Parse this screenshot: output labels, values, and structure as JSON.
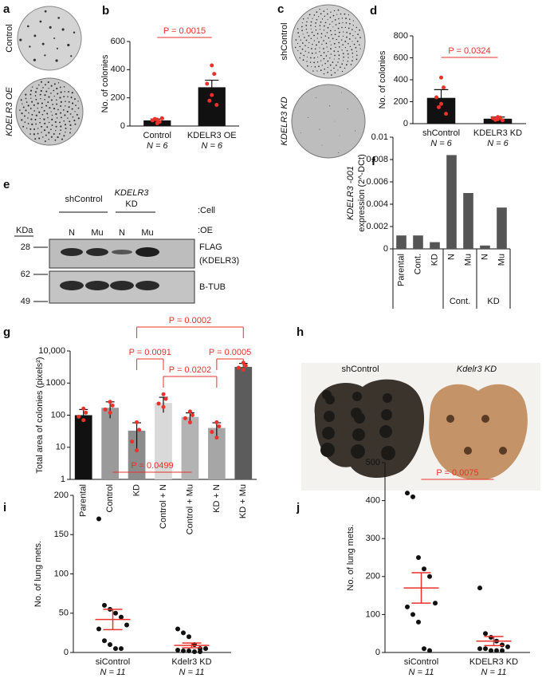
{
  "chart_data": [
    {
      "panel": "b",
      "type": "bar",
      "ylabel": "No. of colonies",
      "categories": [
        "Control",
        "KDELR3 OE"
      ],
      "category_notes": [
        "N = 6",
        "N = 6"
      ],
      "values": [
        40,
        275
      ],
      "errors": [
        10,
        50
      ],
      "points": [
        [
          20,
          30,
          40,
          45,
          50,
          55
        ],
        [
          430,
          370,
          300,
          220,
          180,
          150
        ]
      ],
      "color": "#111111",
      "point_color": "#e8322b",
      "ylim": [
        0,
        600
      ],
      "yticks": [
        0,
        200,
        400,
        600
      ],
      "annotations": [
        "P = 0.0015"
      ]
    },
    {
      "panel": "d",
      "type": "bar",
      "ylabel": "No. of colonies",
      "categories": [
        "shControl",
        "KDELR3 KD"
      ],
      "category_notes": [
        "N = 6",
        "N = 6"
      ],
      "values": [
        235,
        45
      ],
      "errors": [
        75,
        15
      ],
      "points": [
        [
          420,
          330,
          240,
          180,
          150,
          90
        ],
        [
          60,
          55,
          50,
          40,
          35,
          30
        ]
      ],
      "color": "#111111",
      "point_color": "#e8322b",
      "ylim": [
        0,
        800
      ],
      "yticks": [
        0,
        200,
        400,
        600,
        800
      ],
      "annotations": [
        "P = 0.0324"
      ]
    },
    {
      "panel": "f",
      "type": "bar",
      "ylabel": [
        "KDELR3 -001",
        "expression (2^-DCt)"
      ],
      "categories": [
        "Parental",
        "Cont.",
        "KD",
        "N",
        "Mu",
        "N",
        "Mu"
      ],
      "groups": [
        "Cont.",
        "KD"
      ],
      "values": [
        0.0012,
        0.0012,
        0.0006,
        0.0084,
        0.005,
        0.0003,
        0.0037
      ],
      "color": "#555555",
      "ylim": [
        0,
        0.01
      ],
      "yticks": [
        0,
        0.002,
        0.004,
        0.006,
        0.008,
        0.01
      ]
    },
    {
      "panel": "g",
      "type": "bar",
      "log_y": true,
      "ylabel": "Total area of colonies (pixels²)",
      "categories": [
        "Parental",
        "Control",
        "KD",
        "Control + N",
        "Control + Mu",
        "KD + N",
        "KD + Mu"
      ],
      "values": [
        100,
        170,
        33,
        240,
        88,
        40,
        3200
      ],
      "errors": [
        50,
        90,
        25,
        120,
        30,
        18,
        900
      ],
      "points": [
        [
          160,
          120,
          90,
          70
        ],
        [
          260,
          200,
          150,
          120
        ],
        [
          60,
          35,
          15,
          8
        ],
        [
          450,
          320,
          230,
          180
        ],
        [
          130,
          100,
          80,
          60
        ],
        [
          60,
          45,
          30,
          20
        ],
        [
          4300,
          3500,
          3000,
          2600
        ]
      ],
      "colors": [
        "#111111",
        "#9a9a9a",
        "#8c8c8c",
        "#d9d9d9",
        "#b3b3b3",
        "#a6a6a6",
        "#5c5c5c"
      ],
      "point_color": "#e8322b",
      "ylim": [
        1,
        10000
      ],
      "yticks": [
        1,
        10,
        100,
        1000,
        {
          "value": 10000,
          "label": "10,000"
        }
      ],
      "annotations": [
        "P = 0.0002",
        "P = 0.0091",
        "P = 0.0005",
        "P = 0.0202"
      ]
    },
    {
      "panel": "i",
      "type": "strip",
      "ylabel": "No. of lung mets.",
      "categories": [
        "siControl",
        "Kdelr3 KD"
      ],
      "category_notes": [
        "N = 11",
        "N = 11"
      ],
      "points": [
        [
          170,
          60,
          55,
          50,
          45,
          35,
          30,
          15,
          10,
          5,
          5
        ],
        [
          30,
          25,
          20,
          10,
          5,
          5,
          3,
          2,
          2,
          1,
          1
        ]
      ],
      "means": [
        42,
        9
      ],
      "errors": [
        13,
        3
      ],
      "point_color": "#111111",
      "mean_color": "#e8322b",
      "ylim": [
        0,
        200
      ],
      "yticks": [
        0,
        50,
        100,
        150,
        200
      ],
      "annotations": [
        "P = 0.0499"
      ]
    },
    {
      "panel": "j",
      "type": "strip",
      "ylabel": "No. of lung mets.",
      "categories": [
        "siControl",
        "KDELR3 KD"
      ],
      "category_notes": [
        "N = 11",
        "N = 11"
      ],
      "points": [
        [
          420,
          410,
          250,
          220,
          200,
          130,
          120,
          100,
          80,
          10,
          5
        ],
        [
          170,
          50,
          40,
          30,
          20,
          15,
          10,
          10,
          5,
          5,
          5
        ]
      ],
      "means": [
        170,
        30
      ],
      "errors": [
        40,
        12
      ],
      "point_color": "#111111",
      "mean_color": "#e8322b",
      "ylim": [
        0,
        500
      ],
      "yticks": [
        0,
        100,
        200,
        300,
        400,
        500
      ],
      "annotations": [
        "P = 0.0075"
      ]
    }
  ],
  "images": [
    {
      "panel": "a",
      "labels": [
        "Control",
        "KDELR3 OE"
      ]
    },
    {
      "panel": "c",
      "labels": [
        "shControl",
        "KDELR3 KD"
      ]
    },
    {
      "panel": "h",
      "labels": [
        "shControl",
        "Kdelr3 KD"
      ]
    }
  ],
  "blot": {
    "panel": "e",
    "cell_groups": [
      "shControl",
      "KDELR3",
      "KD"
    ],
    "row_tags": [
      ":Cell",
      ":OE"
    ],
    "unit": "KDa",
    "markers": [
      28,
      62,
      49
    ],
    "lanes": [
      "N",
      "Mu",
      "N",
      "Mu"
    ],
    "bands": [
      "FLAG",
      "(KDELR3)",
      "B-TUB"
    ]
  }
}
